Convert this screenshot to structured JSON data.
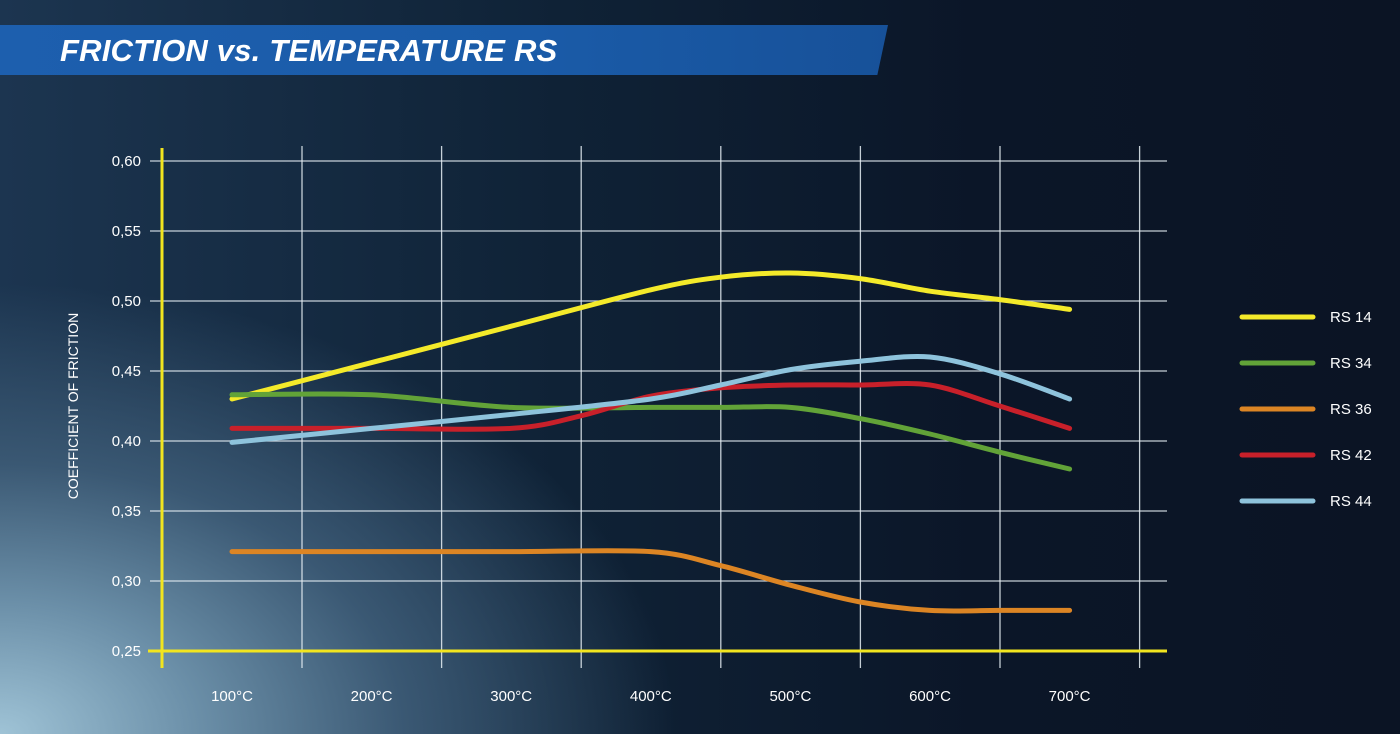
{
  "title": "FRICTION vs. TEMPERATURE RS",
  "chart_data": {
    "type": "line",
    "title": "FRICTION vs. TEMPERATURE RS",
    "xlabel": "",
    "ylabel": "COEFFICIENT OF FRICTION",
    "x_ticks": [
      "100°C",
      "200°C",
      "300°C",
      "400°C",
      "500°C",
      "600°C",
      "700°C"
    ],
    "y_ticks": [
      "0,25",
      "0,30",
      "0,35",
      "0,40",
      "0,45",
      "0,50",
      "0,55",
      "0,60"
    ],
    "ylim": [
      0.25,
      0.6
    ],
    "xlim": [
      0,
      700
    ],
    "grid": true,
    "legend_position": "right",
    "series": [
      {
        "name": "RS 14",
        "color": "#f4ea2a",
        "points": [
          [
            100,
            0.43
          ],
          [
            200,
            0.456
          ],
          [
            300,
            0.482
          ],
          [
            400,
            0.508
          ],
          [
            450,
            0.517
          ],
          [
            500,
            0.52
          ],
          [
            550,
            0.516
          ],
          [
            600,
            0.507
          ],
          [
            650,
            0.501
          ],
          [
            700,
            0.494
          ]
        ]
      },
      {
        "name": "RS 34",
        "color": "#62a338",
        "points": [
          [
            100,
            0.433
          ],
          [
            200,
            0.433
          ],
          [
            300,
            0.424
          ],
          [
            400,
            0.424
          ],
          [
            450,
            0.424
          ],
          [
            500,
            0.424
          ],
          [
            550,
            0.416
          ],
          [
            600,
            0.405
          ],
          [
            650,
            0.392
          ],
          [
            700,
            0.38
          ]
        ]
      },
      {
        "name": "RS 36",
        "color": "#dc8524",
        "points": [
          [
            100,
            0.321
          ],
          [
            200,
            0.321
          ],
          [
            300,
            0.321
          ],
          [
            400,
            0.321
          ],
          [
            450,
            0.311
          ],
          [
            500,
            0.297
          ],
          [
            550,
            0.285
          ],
          [
            600,
            0.279
          ],
          [
            650,
            0.279
          ],
          [
            700,
            0.279
          ]
        ]
      },
      {
        "name": "RS 42",
        "color": "#c8202a",
        "points": [
          [
            100,
            0.409
          ],
          [
            200,
            0.409
          ],
          [
            300,
            0.409
          ],
          [
            350,
            0.418
          ],
          [
            400,
            0.432
          ],
          [
            450,
            0.438
          ],
          [
            500,
            0.44
          ],
          [
            550,
            0.44
          ],
          [
            600,
            0.44
          ],
          [
            650,
            0.425
          ],
          [
            700,
            0.409
          ]
        ]
      },
      {
        "name": "RS 44",
        "color": "#8ec3dc",
        "points": [
          [
            100,
            0.399
          ],
          [
            200,
            0.409
          ],
          [
            300,
            0.419
          ],
          [
            400,
            0.43
          ],
          [
            450,
            0.44
          ],
          [
            500,
            0.451
          ],
          [
            550,
            0.457
          ],
          [
            600,
            0.46
          ],
          [
            650,
            0.448
          ],
          [
            700,
            0.43
          ]
        ]
      }
    ]
  }
}
